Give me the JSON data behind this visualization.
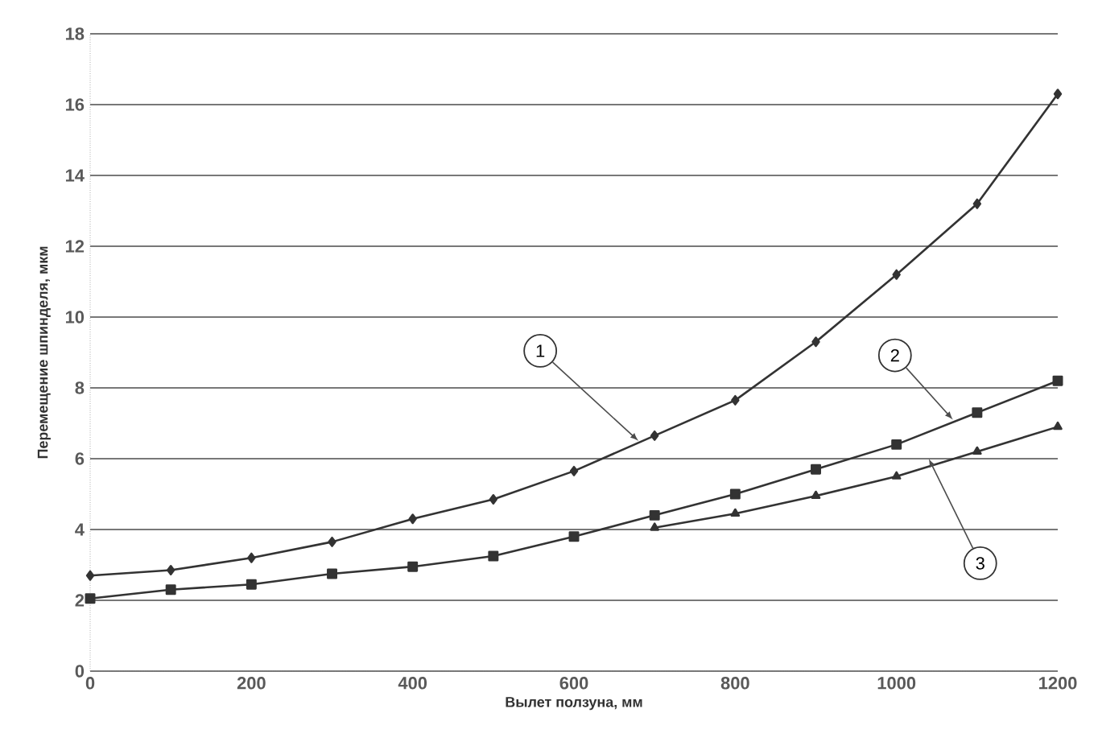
{
  "chart_data": {
    "type": "line",
    "xlabel": "Вылет ползуна, мм",
    "ylabel": "Перемещение шпинделя, мкм",
    "x": [
      0,
      100,
      200,
      300,
      400,
      500,
      600,
      700,
      800,
      900,
      1000,
      1100,
      1200
    ],
    "series": [
      {
        "color": "#333333",
        "marker": "diamond",
        "values": [
          2.7,
          2.85,
          3.2,
          3.65,
          4.3,
          4.85,
          5.65,
          6.65,
          7.65,
          9.3,
          11.2,
          13.2,
          16.3
        ]
      },
      {
        "color": "#333333",
        "marker": "square",
        "values": [
          2.05,
          2.3,
          2.45,
          2.75,
          2.95,
          3.25,
          3.8,
          4.4,
          5.0,
          5.7,
          6.4,
          7.3,
          8.2
        ]
      },
      {
        "color": "#333333",
        "marker": "triangle",
        "values": [
          null,
          null,
          null,
          null,
          null,
          null,
          null,
          4.05,
          4.45,
          4.95,
          5.5,
          6.2,
          6.9
        ]
      }
    ],
    "xlim": [
      0,
      1200
    ],
    "xticks": [
      0,
      200,
      400,
      600,
      800,
      1000,
      1200
    ],
    "ylim": [
      0,
      18
    ],
    "yticks": [
      0,
      2,
      4,
      6,
      8,
      10,
      12,
      14,
      16,
      18
    ],
    "grid": "y",
    "line_style": "solid",
    "annotations": [
      {
        "text": "1",
        "x": 680,
        "y": 6.5
      },
      {
        "text": "2",
        "x": 1070,
        "y": 7.1
      },
      {
        "text": "3",
        "x": 1040,
        "y": 6.0
      }
    ]
  }
}
